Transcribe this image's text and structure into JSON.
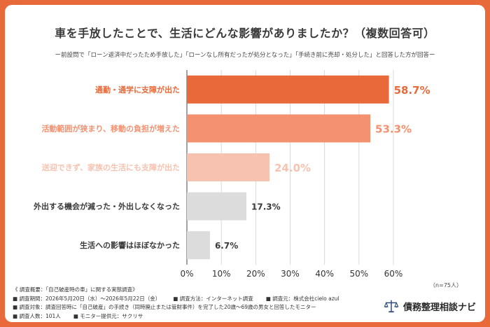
{
  "title": "車を手放したことで、生活にどんな影響がありましたか？（複数回答可）",
  "subtitle": "ー前設問で「ローン返済中だったため手放した」「ローンなし所有だったが処分となった」「手続き前に売却・処分した」と回答した方が回答ー",
  "chart_data": {
    "type": "bar",
    "orientation": "horizontal",
    "categories": [
      "通勤・通学に支障が出た",
      "活動範囲が狭まり、移動の負担が増えた",
      "送迎できず、家族の生活にも支障が出た",
      "外出する機会が減った・外出しなくなった",
      "生活への影響はほぼなかった"
    ],
    "values": [
      58.7,
      53.3,
      24.0,
      17.3,
      6.7
    ],
    "value_labels": [
      "58.7%",
      "53.3%",
      "24.0%",
      "17.3%",
      "6.7%"
    ],
    "xlim": [
      0,
      60
    ],
    "xticks": [
      "0%",
      "10%",
      "20%",
      "30%",
      "40%",
      "50%",
      "60%"
    ],
    "grid": true,
    "bar_colors": [
      "#e8693a",
      "#f39171",
      "#f8c2b0",
      "#dcdcdc",
      "#dcdcdc"
    ],
    "label_colors": [
      "#e8693a",
      "#f39171",
      "#f8c2b0",
      "#3a3a3a",
      "#3a3a3a"
    ],
    "sample_note": "（n=75人）"
  },
  "notes": [
    [
      "《 調査概要：「自己破産時の車」に関する実態調査》"
    ],
    [
      "■ 調査期間：2026年5月20日（水）〜2026年5月22日（金）",
      "■ 調査方法：インターネット調査",
      "■ 調査元：株式会社cielo azul"
    ],
    [
      "■ 調査対象：調査回答時に「自己破産」の手続き（同時廃止または管財事件）を完了した20歳〜69歳の男女と回答したモニター"
    ],
    [
      "■ 調査人数：101人",
      "■ モニター提供元：サクリサ"
    ]
  ],
  "brand": "債務整理相談ナビ",
  "colors": {
    "accent": "#e8693a",
    "background": "#ffffff"
  }
}
